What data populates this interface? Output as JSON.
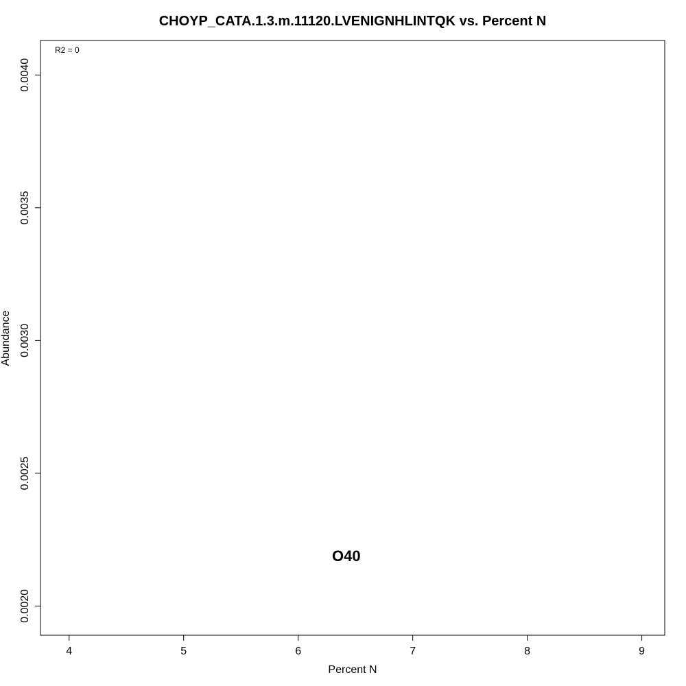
{
  "chart_data": {
    "type": "scatter",
    "title": "CHOYP_CATA.1.3.m.11120.LVENIGNHLINTQK vs. Percent N",
    "xlabel": "Percent N",
    "ylabel": "Abundance",
    "xlim": [
      3.75,
      9.2
    ],
    "ylim": [
      0.00189,
      0.00413
    ],
    "x_ticks": [
      4,
      5,
      6,
      7,
      8,
      9
    ],
    "x_tick_labels": [
      "4",
      "5",
      "6",
      "7",
      "8",
      "9"
    ],
    "y_ticks": [
      0.002,
      0.0025,
      0.003,
      0.0035,
      0.004
    ],
    "y_tick_labels": [
      "0.0020",
      "0.0025",
      "0.0030",
      "0.0035",
      "0.0040"
    ],
    "grid": false,
    "annotation": "R2 = 0",
    "points": [
      {
        "label": "O40",
        "x": 6.42,
        "y": 0.00219
      }
    ]
  }
}
